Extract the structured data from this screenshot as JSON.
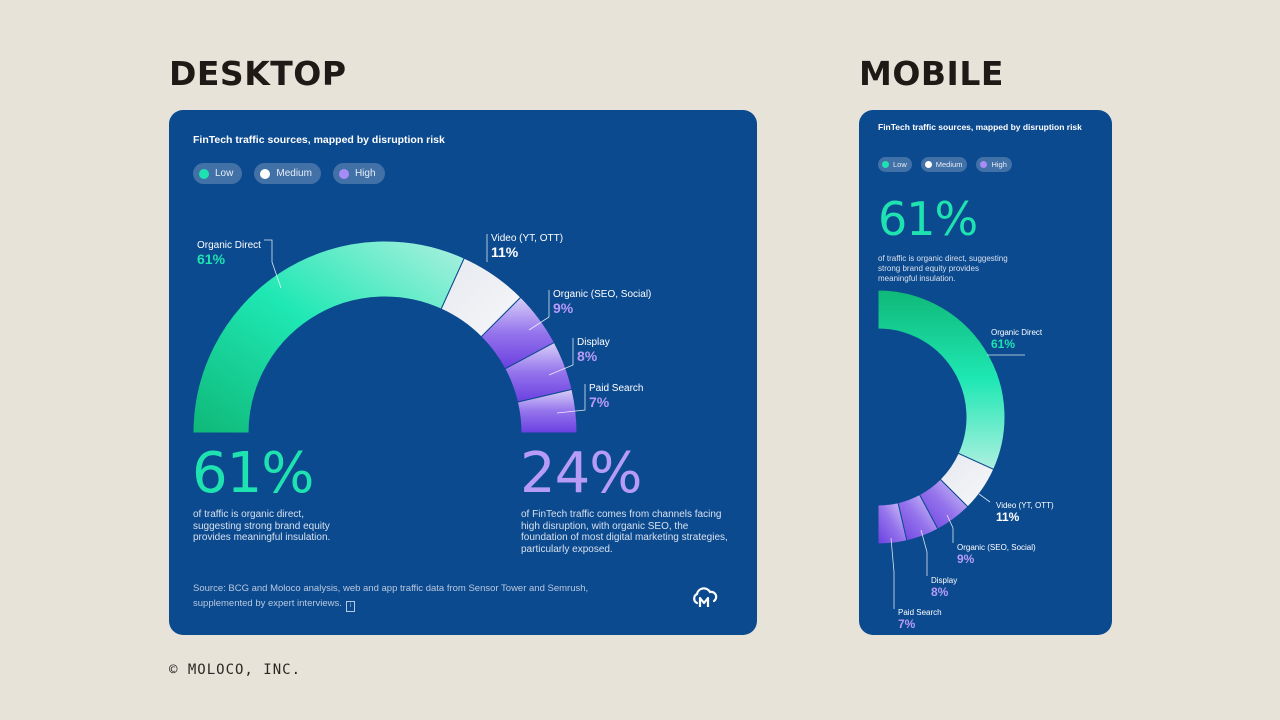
{
  "headings": {
    "desktop": "DESKTOP",
    "mobile": "MOBILE"
  },
  "copyright": "© MOLOCO, INC.",
  "chart": {
    "title": "FinTech traffic sources, mapped by disruption risk",
    "legend": [
      {
        "label": "Low",
        "color": "#1ee3b0"
      },
      {
        "label": "Medium",
        "color": "#ffffff"
      },
      {
        "label": "High",
        "color": "#a98bf5"
      }
    ]
  },
  "stats": {
    "left_value": "61%",
    "left_text": "of traffic is organic direct, suggesting strong brand equity provides meaningful insulation.",
    "right_value": "24%",
    "right_text": "of FinTech traffic comes from channels facing high disruption, with organic SEO, the foundation of most digital marketing strategies, particularly exposed."
  },
  "source": "Source: BCG and Moloco analysis, web and app traffic data from Sensor Tower and Semrush, supplemented by expert interviews.",
  "chart_data": {
    "type": "pie",
    "title": "FinTech traffic sources, mapped by disruption risk",
    "categories": [
      "Organic Direct",
      "Video (YT, OTT)",
      "Organic (SEO, Social)",
      "Display",
      "Paid Search"
    ],
    "values": [
      61,
      11,
      9,
      8,
      7
    ],
    "value_labels": [
      "61%",
      "11%",
      "9%",
      "8%",
      "7%"
    ],
    "risk": [
      "Low",
      "Medium",
      "High",
      "High",
      "High"
    ],
    "colors": {
      "Low": [
        "#0fb878",
        "#1fe8b4",
        "#aef0e0"
      ],
      "Medium": [
        "#e6e9ef",
        "#f6f7f9"
      ],
      "High": [
        "#d8d0f8",
        "#9574ec",
        "#6a3fe0"
      ],
      "label_low": "#1ee3b0",
      "label_high": "#b69bf7",
      "label_medium": "#ffffff"
    }
  }
}
